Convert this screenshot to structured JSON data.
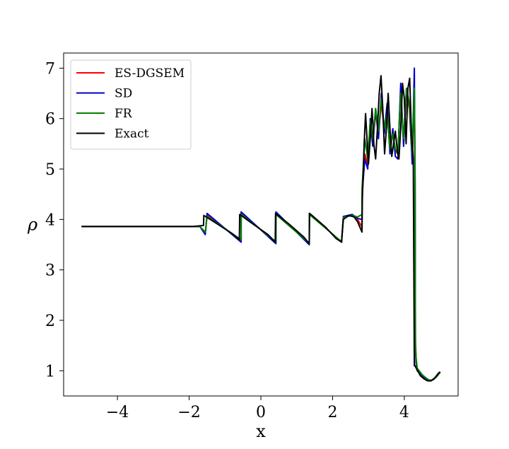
{
  "chart_data": {
    "type": "line",
    "title": "",
    "xlabel": "x",
    "ylabel": "ρ",
    "xlim": [
      -5.5,
      5.5
    ],
    "ylim": [
      0.5,
      7.3
    ],
    "xticks": [
      -4,
      -2,
      0,
      2,
      4
    ],
    "xtick_labels": [
      "−4",
      "−2",
      "0",
      "2",
      "4"
    ],
    "yticks": [
      1,
      2,
      3,
      4,
      5,
      6,
      7
    ],
    "ytick_labels": [
      "1",
      "2",
      "3",
      "4",
      "5",
      "6",
      "7"
    ],
    "grid": false,
    "legend_position": "top-left",
    "series": [
      {
        "name": "ES-DGSEM",
        "color": "#ff0000",
        "x": [
          -5.0,
          -1.7,
          -1.55,
          -1.5,
          -0.55,
          -0.55,
          0.42,
          0.42,
          1.35,
          1.35,
          2.25,
          2.3,
          2.55,
          2.7,
          2.82,
          2.82,
          2.9,
          2.98,
          3.05,
          3.12,
          3.2,
          3.28,
          3.36,
          3.44,
          3.52,
          3.6,
          3.68,
          3.75,
          3.82,
          3.9,
          3.98,
          4.06,
          4.14,
          4.22,
          4.28,
          4.3,
          4.31,
          4.33,
          4.36,
          4.5,
          4.6,
          4.7,
          4.8,
          4.9,
          5.0
        ],
        "y": [
          3.86,
          3.86,
          3.72,
          4.08,
          3.58,
          4.12,
          3.55,
          4.12,
          3.52,
          4.12,
          3.55,
          4.05,
          4.08,
          4.0,
          3.85,
          4.4,
          5.3,
          5.1,
          5.9,
          5.5,
          6.1,
          5.7,
          6.3,
          5.8,
          6.2,
          5.35,
          5.7,
          5.35,
          5.3,
          6.6,
          5.5,
          6.5,
          6.2,
          5.2,
          6.4,
          4.8,
          1.5,
          1.2,
          1.0,
          0.9,
          0.85,
          0.81,
          0.82,
          0.88,
          0.97
        ]
      },
      {
        "name": "SD",
        "color": "#0000cc",
        "x": [
          -5.0,
          -1.7,
          -1.55,
          -1.5,
          -0.55,
          -0.55,
          0.42,
          0.42,
          1.35,
          1.35,
          2.25,
          2.3,
          2.55,
          2.7,
          2.82,
          2.82,
          2.9,
          2.98,
          3.05,
          3.12,
          3.2,
          3.28,
          3.36,
          3.44,
          3.52,
          3.6,
          3.68,
          3.75,
          3.82,
          3.9,
          3.98,
          4.06,
          4.14,
          4.22,
          4.28,
          4.3,
          4.31,
          4.33,
          4.36,
          4.5,
          4.6,
          4.7,
          4.8,
          4.9,
          5.0
        ],
        "y": [
          3.86,
          3.86,
          3.7,
          4.12,
          3.55,
          4.15,
          3.52,
          4.15,
          3.5,
          4.12,
          3.55,
          4.06,
          4.1,
          4.02,
          4.0,
          4.5,
          5.2,
          5.0,
          6.0,
          5.45,
          6.2,
          5.6,
          6.5,
          5.7,
          6.3,
          5.3,
          5.8,
          5.25,
          5.2,
          6.7,
          5.45,
          6.6,
          6.3,
          5.1,
          7.0,
          4.6,
          1.4,
          1.15,
          1.0,
          0.9,
          0.85,
          0.81,
          0.82,
          0.88,
          0.97
        ]
      },
      {
        "name": "FR",
        "color": "#008000",
        "x": [
          -5.0,
          -1.7,
          -1.55,
          -1.5,
          -0.55,
          -0.55,
          0.42,
          0.42,
          1.35,
          1.35,
          2.25,
          2.3,
          2.55,
          2.7,
          2.82,
          2.82,
          2.9,
          2.98,
          3.05,
          3.12,
          3.2,
          3.28,
          3.36,
          3.44,
          3.52,
          3.6,
          3.68,
          3.75,
          3.82,
          3.9,
          3.98,
          4.06,
          4.14,
          4.22,
          4.28,
          4.3,
          4.31,
          4.33,
          4.36,
          4.5,
          4.6,
          4.7,
          4.8,
          4.9,
          5.0
        ],
        "y": [
          3.86,
          3.86,
          3.75,
          4.06,
          3.6,
          4.1,
          3.56,
          4.1,
          3.53,
          4.1,
          3.56,
          4.04,
          4.08,
          4.05,
          4.1,
          4.6,
          5.6,
          5.2,
          5.95,
          5.6,
          6.2,
          5.75,
          6.4,
          5.8,
          6.1,
          5.4,
          5.7,
          5.4,
          5.3,
          6.5,
          5.6,
          6.6,
          6.3,
          5.3,
          6.6,
          5.0,
          1.6,
          1.25,
          1.05,
          0.92,
          0.86,
          0.81,
          0.82,
          0.88,
          0.97
        ]
      },
      {
        "name": "Exact",
        "color": "#000000",
        "x": [
          -5.0,
          -1.9,
          -1.75,
          -1.6,
          -1.59,
          -1.3,
          -0.8,
          -0.6,
          -0.59,
          -0.3,
          0.2,
          0.4,
          0.41,
          0.8,
          1.2,
          1.35,
          1.36,
          1.8,
          2.1,
          2.25,
          2.3,
          2.45,
          2.6,
          2.7,
          2.82,
          2.83,
          2.88,
          2.92,
          2.96,
          3.0,
          3.05,
          3.1,
          3.15,
          3.2,
          3.25,
          3.3,
          3.35,
          3.4,
          3.45,
          3.5,
          3.55,
          3.6,
          3.65,
          3.7,
          3.75,
          3.8,
          3.85,
          3.9,
          3.95,
          4.0,
          4.05,
          4.1,
          4.15,
          4.2,
          4.25,
          4.28,
          4.3,
          4.31,
          4.45,
          4.55,
          4.65,
          4.75,
          4.85,
          4.95,
          5.0
        ],
        "y": [
          3.86,
          3.86,
          3.87,
          3.88,
          4.08,
          3.95,
          3.72,
          3.6,
          4.1,
          3.95,
          3.7,
          3.55,
          4.12,
          3.9,
          3.65,
          3.52,
          4.12,
          3.85,
          3.62,
          3.55,
          4.0,
          4.08,
          4.05,
          3.95,
          3.75,
          4.4,
          5.5,
          6.1,
          5.6,
          5.1,
          5.6,
          6.2,
          5.5,
          5.2,
          5.8,
          6.5,
          6.85,
          6.2,
          5.3,
          5.8,
          6.5,
          5.8,
          5.25,
          5.5,
          5.75,
          5.4,
          5.2,
          5.8,
          6.7,
          6.4,
          5.5,
          6.6,
          6.8,
          5.7,
          5.2,
          1.1,
          1.1,
          1.08,
          0.9,
          0.84,
          0.8,
          0.8,
          0.86,
          0.95,
          0.98
        ]
      }
    ]
  }
}
